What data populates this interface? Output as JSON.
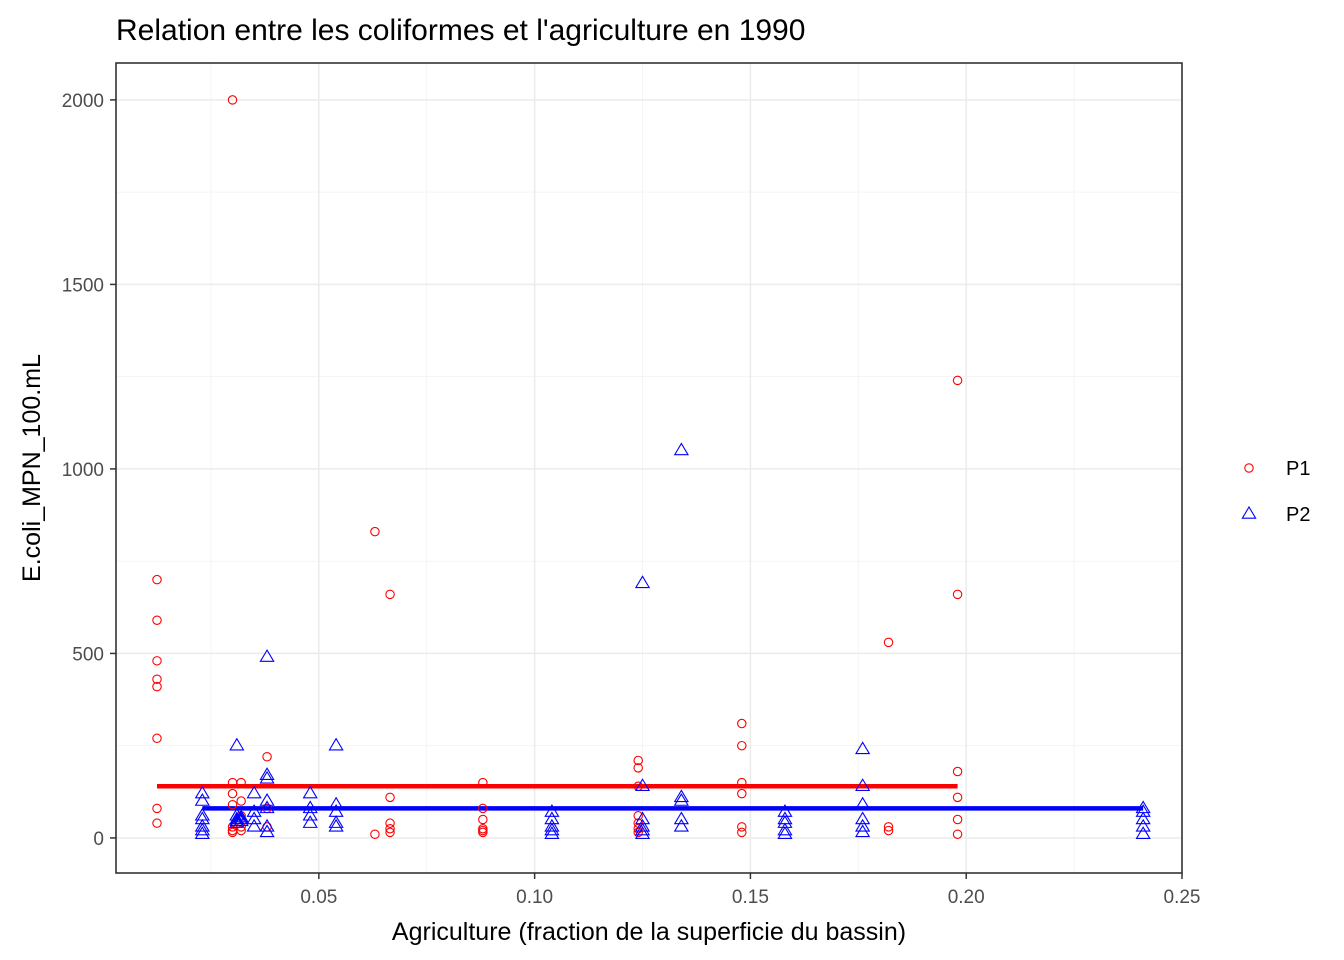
{
  "chart_data": {
    "type": "scatter",
    "title": "Relation entre les coliformes et l'agriculture en 1990",
    "xlabel": "Agriculture (fraction de la superficie du bassin)",
    "ylabel": "E.coli_MPN_100.mL",
    "xlim": [
      0.003,
      0.25
    ],
    "ylim": [
      -95,
      2100
    ],
    "x_ticks": [
      0.05,
      0.1,
      0.15,
      0.2,
      0.25
    ],
    "x_tick_labels": [
      "0.05",
      "0.10",
      "0.15",
      "0.20",
      "0.25"
    ],
    "y_ticks": [
      0,
      500,
      1000,
      1500,
      2000
    ],
    "y_tick_labels": [
      "0",
      "500",
      "1000",
      "1500",
      "2000"
    ],
    "grid": true,
    "legend_position": "right",
    "series": [
      {
        "name": "P1",
        "color": "#ff0000",
        "marker": "circle",
        "points": [
          [
            0.0125,
            700
          ],
          [
            0.0125,
            590
          ],
          [
            0.0125,
            480
          ],
          [
            0.0125,
            430
          ],
          [
            0.0125,
            410
          ],
          [
            0.0125,
            270
          ],
          [
            0.0125,
            80
          ],
          [
            0.0125,
            40
          ],
          [
            0.03,
            2000
          ],
          [
            0.03,
            150
          ],
          [
            0.03,
            120
          ],
          [
            0.03,
            90
          ],
          [
            0.03,
            30
          ],
          [
            0.03,
            20
          ],
          [
            0.03,
            15
          ],
          [
            0.032,
            150
          ],
          [
            0.032,
            100
          ],
          [
            0.032,
            60
          ],
          [
            0.032,
            30
          ],
          [
            0.032,
            20
          ],
          [
            0.038,
            220
          ],
          [
            0.038,
            80
          ],
          [
            0.038,
            30
          ],
          [
            0.063,
            830
          ],
          [
            0.063,
            10
          ],
          [
            0.0665,
            660
          ],
          [
            0.0665,
            110
          ],
          [
            0.0665,
            40
          ],
          [
            0.0665,
            25
          ],
          [
            0.0665,
            15
          ],
          [
            0.088,
            150
          ],
          [
            0.088,
            80
          ],
          [
            0.088,
            50
          ],
          [
            0.088,
            25
          ],
          [
            0.088,
            20
          ],
          [
            0.088,
            15
          ],
          [
            0.124,
            210
          ],
          [
            0.124,
            190
          ],
          [
            0.124,
            140
          ],
          [
            0.124,
            60
          ],
          [
            0.124,
            40
          ],
          [
            0.124,
            25
          ],
          [
            0.124,
            15
          ],
          [
            0.148,
            310
          ],
          [
            0.148,
            250
          ],
          [
            0.148,
            150
          ],
          [
            0.148,
            120
          ],
          [
            0.148,
            30
          ],
          [
            0.148,
            15
          ],
          [
            0.182,
            530
          ],
          [
            0.182,
            30
          ],
          [
            0.182,
            20
          ],
          [
            0.198,
            1240
          ],
          [
            0.198,
            660
          ],
          [
            0.198,
            180
          ],
          [
            0.198,
            110
          ],
          [
            0.198,
            50
          ],
          [
            0.198,
            10
          ]
        ],
        "trend": {
          "x": [
            0.0125,
            0.198
          ],
          "y": [
            140,
            140
          ]
        }
      },
      {
        "name": "P2",
        "color": "#0000ff",
        "marker": "triangle",
        "points": [
          [
            0.023,
            120
          ],
          [
            0.023,
            100
          ],
          [
            0.023,
            60
          ],
          [
            0.023,
            50
          ],
          [
            0.023,
            30
          ],
          [
            0.023,
            20
          ],
          [
            0.023,
            10
          ],
          [
            0.031,
            250
          ],
          [
            0.031,
            60
          ],
          [
            0.031,
            50
          ],
          [
            0.031,
            45
          ],
          [
            0.031,
            40
          ],
          [
            0.032,
            55
          ],
          [
            0.032,
            50
          ],
          [
            0.032,
            45
          ],
          [
            0.035,
            120
          ],
          [
            0.035,
            70
          ],
          [
            0.035,
            50
          ],
          [
            0.035,
            30
          ],
          [
            0.038,
            490
          ],
          [
            0.038,
            170
          ],
          [
            0.038,
            160
          ],
          [
            0.038,
            100
          ],
          [
            0.038,
            80
          ],
          [
            0.038,
            30
          ],
          [
            0.038,
            15
          ],
          [
            0.048,
            120
          ],
          [
            0.048,
            80
          ],
          [
            0.048,
            60
          ],
          [
            0.048,
            40
          ],
          [
            0.054,
            250
          ],
          [
            0.054,
            90
          ],
          [
            0.054,
            70
          ],
          [
            0.054,
            40
          ],
          [
            0.054,
            30
          ],
          [
            0.104,
            70
          ],
          [
            0.104,
            50
          ],
          [
            0.104,
            30
          ],
          [
            0.104,
            20
          ],
          [
            0.104,
            10
          ],
          [
            0.125,
            690
          ],
          [
            0.125,
            140
          ],
          [
            0.125,
            50
          ],
          [
            0.125,
            30
          ],
          [
            0.125,
            20
          ],
          [
            0.125,
            10
          ],
          [
            0.134,
            1050
          ],
          [
            0.134,
            110
          ],
          [
            0.134,
            100
          ],
          [
            0.134,
            50
          ],
          [
            0.134,
            30
          ],
          [
            0.158,
            70
          ],
          [
            0.158,
            50
          ],
          [
            0.158,
            40
          ],
          [
            0.158,
            20
          ],
          [
            0.158,
            10
          ],
          [
            0.176,
            240
          ],
          [
            0.176,
            140
          ],
          [
            0.176,
            90
          ],
          [
            0.176,
            50
          ],
          [
            0.176,
            30
          ],
          [
            0.176,
            15
          ],
          [
            0.241,
            80
          ],
          [
            0.241,
            70
          ],
          [
            0.241,
            50
          ],
          [
            0.241,
            30
          ],
          [
            0.241,
            10
          ]
        ],
        "trend": {
          "x": [
            0.023,
            0.241
          ],
          "y": [
            80,
            80
          ]
        }
      }
    ]
  }
}
